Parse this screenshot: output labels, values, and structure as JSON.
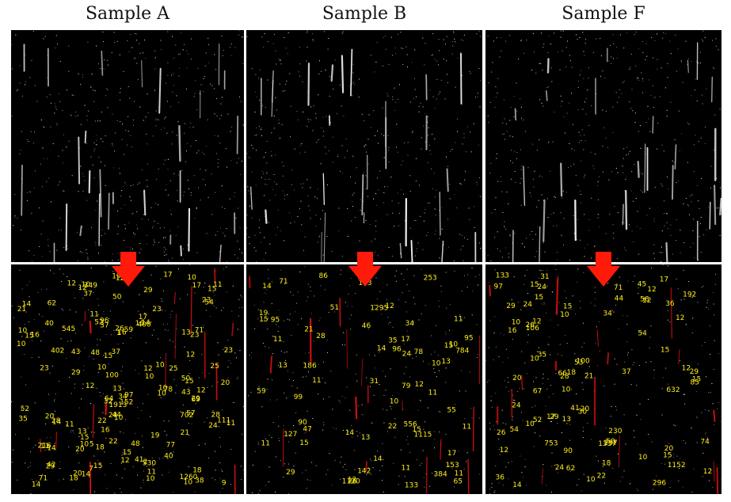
{
  "columns": [
    {
      "title": "Sample A"
    },
    {
      "title": "Sample B"
    },
    {
      "title": "Sample F"
    }
  ],
  "annotated_labels": {
    "A": [
      "19",
      "530",
      "64",
      "59",
      "10",
      "20",
      "22",
      "26",
      "1",
      "1260",
      "52",
      "20",
      "1913",
      "69",
      "78",
      "71",
      "10",
      "54",
      "35",
      "18",
      "14",
      "50",
      "37",
      "16",
      "12",
      "15",
      "17",
      "71",
      "13",
      "43",
      "11",
      "12",
      "5",
      "10",
      "20",
      "52",
      "40",
      "21",
      "10",
      "12",
      "29",
      "23",
      "7",
      "25",
      "14",
      "16",
      "20",
      "48",
      "14",
      "16",
      "23",
      "13",
      "14",
      "17",
      "37",
      "10",
      "14",
      "97",
      "15",
      "12",
      "10",
      "12",
      "23",
      "19",
      "40",
      "29",
      "14",
      "41",
      "48",
      "44",
      "152",
      "16",
      "38",
      "15",
      "29",
      "2",
      "24",
      "77",
      "11",
      "12",
      "50",
      "25",
      "37",
      "34",
      "10",
      "111",
      "11",
      "100",
      "96",
      "402",
      "21",
      "9",
      "11",
      "349",
      "13",
      "28",
      "32",
      "23",
      "10",
      "22",
      "15",
      "400",
      "11",
      "216",
      "62",
      "17",
      "11",
      "10",
      "15",
      "24",
      "10",
      "18",
      "15",
      "10",
      "29",
      "57",
      "18",
      "702",
      "10",
      "545",
      "43",
      "28",
      "12",
      "12",
      "42",
      "10",
      "15",
      "23"
    ],
    "B": [
      "133",
      "1120",
      "784",
      "51",
      "24",
      "71",
      "10",
      "556",
      "253",
      "13",
      "12",
      "11",
      "46",
      "153",
      "47",
      "21",
      "11",
      "1295",
      "14",
      "95",
      "22",
      "35",
      "31",
      "15",
      "13",
      "183",
      "15",
      "127",
      "14",
      "15",
      "26",
      "10",
      "90",
      "15",
      "65",
      "59",
      "29",
      "12",
      "11",
      "14",
      "17",
      "11",
      "1115",
      "99",
      "12",
      "55",
      "95",
      "14",
      "78",
      "17",
      "11",
      "28",
      "79",
      "384",
      "11",
      "142",
      "96",
      "11",
      "10",
      "11",
      "13",
      "86",
      "186",
      "34",
      "19"
    ],
    "F": [
      "18",
      "230",
      "16",
      "12",
      "85",
      "20",
      "35",
      "1152",
      "18",
      "54",
      "12",
      "133",
      "21",
      "106",
      "15",
      "44",
      "15",
      "10",
      "14",
      "24",
      "36",
      "45",
      "28",
      "22",
      "26",
      "632",
      "29",
      "15",
      "10",
      "66",
      "50",
      "12",
      "100",
      "97",
      "31",
      "56",
      "52",
      "37",
      "17",
      "26",
      "12",
      "34",
      "71",
      "62",
      "15",
      "54",
      "10",
      "24",
      "10",
      "29",
      "12",
      "30",
      "20",
      "1337",
      "12",
      "67",
      "296",
      "17",
      "15",
      "13",
      "192",
      "15",
      "53",
      "74",
      "753",
      "297",
      "20",
      "29",
      "10",
      "90",
      "10",
      "24",
      "36",
      "10",
      "24",
      "41",
      "12"
    ]
  }
}
